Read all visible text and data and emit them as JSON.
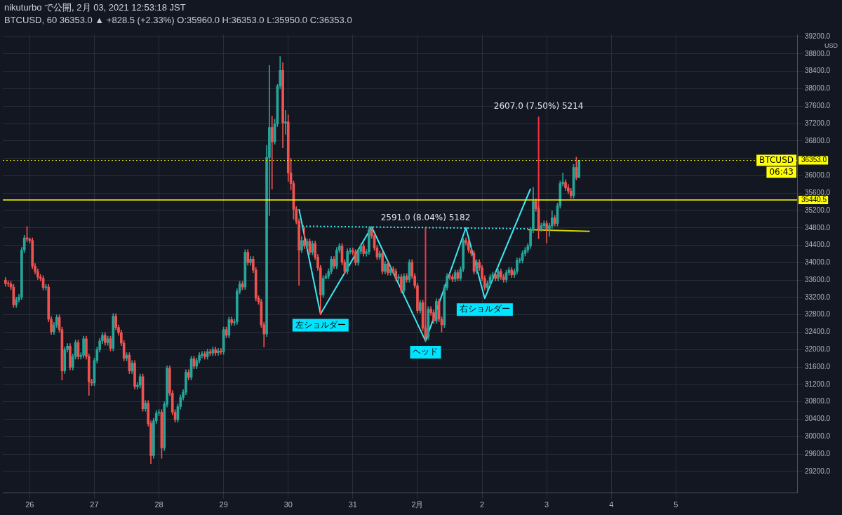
{
  "chart_data": {
    "type": "candlestick",
    "title": "nikuturbo で公開, 2月 03, 2021 12:53:18 JST",
    "subtitle": "BTCUSD, 60 36353.0 ▲ +828.5 (+2.33%) O:35960.0 H:36353.0 L:35950.0 C:36353.0",
    "ylabel": "USD",
    "x": [
      "2021-01-25T15:00",
      "2021-01-25T16:00",
      "2021-01-25T17:00",
      "2021-01-25T18:00",
      "2021-01-25T19:00",
      "2021-01-25T20:00",
      "2021-01-25T21:00",
      "2021-01-25T22:00",
      "2021-01-25T23:00",
      "2021-01-26T00:00",
      "2021-01-26T01:00",
      "2021-01-26T02:00",
      "2021-01-26T03:00",
      "2021-01-26T04:00",
      "2021-01-26T05:00",
      "2021-01-26T06:00",
      "2021-01-26T07:00",
      "2021-01-26T08:00",
      "2021-01-26T09:00",
      "2021-01-26T10:00",
      "2021-01-26T11:00",
      "2021-01-26T12:00",
      "2021-01-26T13:00",
      "2021-01-26T14:00",
      "2021-01-26T15:00",
      "2021-01-26T16:00",
      "2021-01-26T17:00",
      "2021-01-26T18:00",
      "2021-01-26T19:00",
      "2021-01-26T20:00",
      "2021-01-26T21:00",
      "2021-01-26T22:00",
      "2021-01-26T23:00",
      "2021-01-27T00:00",
      "2021-01-27T01:00",
      "2021-01-27T02:00",
      "2021-01-27T03:00",
      "2021-01-27T04:00",
      "2021-01-27T05:00",
      "2021-01-27T06:00",
      "2021-01-27T07:00",
      "2021-01-27T08:00",
      "2021-01-27T09:00",
      "2021-01-27T10:00",
      "2021-01-27T11:00",
      "2021-01-27T12:00",
      "2021-01-27T13:00",
      "2021-01-27T14:00",
      "2021-01-27T15:00",
      "2021-01-27T16:00",
      "2021-01-27T17:00",
      "2021-01-27T18:00",
      "2021-01-27T19:00",
      "2021-01-27T20:00",
      "2021-01-27T21:00",
      "2021-01-27T22:00",
      "2021-01-27T23:00",
      "2021-01-28T00:00",
      "2021-01-28T01:00",
      "2021-01-28T02:00",
      "2021-01-28T03:00",
      "2021-01-28T04:00",
      "2021-01-28T05:00",
      "2021-01-28T06:00",
      "2021-01-28T07:00",
      "2021-01-28T08:00",
      "2021-01-28T09:00",
      "2021-01-28T10:00",
      "2021-01-28T11:00",
      "2021-01-28T12:00",
      "2021-01-28T13:00",
      "2021-01-28T14:00",
      "2021-01-28T15:00",
      "2021-01-28T16:00",
      "2021-01-28T17:00",
      "2021-01-28T18:00",
      "2021-01-28T19:00",
      "2021-01-28T20:00",
      "2021-01-28T21:00",
      "2021-01-28T22:00",
      "2021-01-28T23:00",
      "2021-01-29T00:00",
      "2021-01-29T01:00",
      "2021-01-29T02:00",
      "2021-01-29T03:00",
      "2021-01-29T04:00",
      "2021-01-29T05:00",
      "2021-01-29T06:00",
      "2021-01-29T07:00",
      "2021-01-29T08:00",
      "2021-01-29T09:00",
      "2021-01-29T10:00",
      "2021-01-29T11:00",
      "2021-01-29T12:00",
      "2021-01-29T13:00",
      "2021-01-29T14:00",
      "2021-01-29T15:00",
      "2021-01-29T16:00",
      "2021-01-29T17:00",
      "2021-01-29T18:00",
      "2021-01-29T19:00",
      "2021-01-29T20:00",
      "2021-01-29T21:00",
      "2021-01-29T22:00",
      "2021-01-29T23:00",
      "2021-01-30T00:00",
      "2021-01-30T01:00",
      "2021-01-30T02:00",
      "2021-01-30T03:00",
      "2021-01-30T04:00",
      "2021-01-30T05:00",
      "2021-01-30T06:00",
      "2021-01-30T07:00",
      "2021-01-30T08:00",
      "2021-01-30T09:00",
      "2021-01-30T10:00",
      "2021-01-30T11:00",
      "2021-01-30T12:00",
      "2021-01-30T13:00",
      "2021-01-30T14:00",
      "2021-01-30T15:00",
      "2021-01-30T16:00",
      "2021-01-30T17:00",
      "2021-01-30T18:00",
      "2021-01-30T19:00",
      "2021-01-30T20:00",
      "2021-01-30T21:00",
      "2021-01-30T22:00",
      "2021-01-30T23:00",
      "2021-01-31T00:00",
      "2021-01-31T01:00",
      "2021-01-31T02:00",
      "2021-01-31T03:00",
      "2021-01-31T04:00",
      "2021-01-31T05:00",
      "2021-01-31T06:00",
      "2021-01-31T07:00",
      "2021-01-31T08:00",
      "2021-01-31T09:00",
      "2021-01-31T10:00",
      "2021-01-31T11:00",
      "2021-01-31T12:00",
      "2021-01-31T13:00",
      "2021-01-31T14:00",
      "2021-01-31T15:00",
      "2021-01-31T16:00",
      "2021-01-31T17:00",
      "2021-01-31T18:00",
      "2021-01-31T19:00",
      "2021-01-31T20:00",
      "2021-01-31T21:00",
      "2021-01-31T22:00",
      "2021-01-31T23:00",
      "2021-02-01T00:00",
      "2021-02-01T01:00",
      "2021-02-01T02:00",
      "2021-02-01T03:00",
      "2021-02-01T04:00",
      "2021-02-01T05:00",
      "2021-02-01T06:00",
      "2021-02-01T07:00",
      "2021-02-01T08:00",
      "2021-02-01T09:00",
      "2021-02-01T10:00",
      "2021-02-01T11:00",
      "2021-02-01T12:00",
      "2021-02-01T13:00",
      "2021-02-01T14:00",
      "2021-02-01T15:00",
      "2021-02-01T16:00",
      "2021-02-01T17:00",
      "2021-02-01T18:00",
      "2021-02-01T19:00",
      "2021-02-01T20:00",
      "2021-02-01T21:00",
      "2021-02-01T22:00",
      "2021-02-01T23:00",
      "2021-02-02T00:00",
      "2021-02-02T01:00",
      "2021-02-02T02:00",
      "2021-02-02T03:00",
      "2021-02-02T04:00",
      "2021-02-02T05:00",
      "2021-02-02T06:00",
      "2021-02-02T07:00",
      "2021-02-02T08:00",
      "2021-02-02T09:00",
      "2021-02-02T10:00",
      "2021-02-02T11:00",
      "2021-02-02T12:00",
      "2021-02-02T13:00",
      "2021-02-02T14:00",
      "2021-02-02T15:00",
      "2021-02-02T16:00",
      "2021-02-02T17:00",
      "2021-02-02T18:00",
      "2021-02-02T19:00",
      "2021-02-02T20:00",
      "2021-02-02T21:00",
      "2021-02-02T22:00",
      "2021-02-02T23:00",
      "2021-02-03T00:00",
      "2021-02-03T01:00",
      "2021-02-03T02:00",
      "2021-02-03T03:00",
      "2021-02-03T04:00",
      "2021-02-03T05:00",
      "2021-02-03T06:00",
      "2021-02-03T07:00",
      "2021-02-03T08:00",
      "2021-02-03T09:00",
      "2021-02-03T10:00",
      "2021-02-03T11:00",
      "2021-02-03T12:00"
    ],
    "ohlc": [
      [
        33600,
        33660,
        33460,
        33520
      ],
      [
        33520,
        33580,
        33450,
        33510
      ],
      [
        33510,
        33570,
        33380,
        33440
      ],
      [
        33440,
        33500,
        32970,
        33030
      ],
      [
        33030,
        33210,
        32970,
        33150
      ],
      [
        33150,
        33270,
        33090,
        33210
      ],
      [
        33210,
        34350,
        33150,
        34290
      ],
      [
        34290,
        34630,
        34230,
        34570
      ],
      [
        34570,
        34830,
        34480,
        34540
      ],
      [
        34540,
        34570,
        34450,
        34510
      ],
      [
        34510,
        34570,
        33860,
        33920
      ],
      [
        33920,
        33980,
        33740,
        33800
      ],
      [
        33800,
        33860,
        33610,
        33670
      ],
      [
        33670,
        33730,
        33580,
        33640
      ],
      [
        33640,
        33700,
        33370,
        33430
      ],
      [
        33430,
        33500,
        33370,
        33440
      ],
      [
        33440,
        33500,
        32640,
        32700
      ],
      [
        32700,
        32760,
        32350,
        32410
      ],
      [
        32410,
        32630,
        32350,
        32570
      ],
      [
        32570,
        32800,
        32510,
        32740
      ],
      [
        32740,
        32800,
        32400,
        32460
      ],
      [
        32460,
        32520,
        31300,
        31510
      ],
      [
        31510,
        32060,
        31450,
        32000
      ],
      [
        32000,
        32140,
        31940,
        32080
      ],
      [
        32080,
        32140,
        31530,
        31590
      ],
      [
        31590,
        31900,
        31530,
        31840
      ],
      [
        31840,
        32220,
        31780,
        32160
      ],
      [
        32160,
        32220,
        31780,
        31840
      ],
      [
        31840,
        31930,
        31780,
        31870
      ],
      [
        31870,
        32310,
        31810,
        32250
      ],
      [
        32250,
        32310,
        31780,
        31840
      ],
      [
        31840,
        31900,
        30950,
        31260
      ],
      [
        31260,
        31320,
        31170,
        31230
      ],
      [
        31230,
        31810,
        31170,
        31750
      ],
      [
        31750,
        32060,
        31690,
        32000
      ],
      [
        32000,
        32260,
        31940,
        32200
      ],
      [
        32200,
        32390,
        32140,
        32330
      ],
      [
        32330,
        32390,
        32100,
        32160
      ],
      [
        32160,
        32310,
        32100,
        32250
      ],
      [
        32250,
        32310,
        31970,
        32030
      ],
      [
        32030,
        32830,
        31970,
        32770
      ],
      [
        32770,
        32830,
        32450,
        32510
      ],
      [
        32510,
        32570,
        32330,
        32390
      ],
      [
        32390,
        32450,
        32090,
        32150
      ],
      [
        32150,
        32210,
        31740,
        31800
      ],
      [
        31800,
        31930,
        31740,
        31870
      ],
      [
        31870,
        31930,
        31450,
        31510
      ],
      [
        31510,
        31750,
        31450,
        31690
      ],
      [
        31690,
        31750,
        31090,
        31150
      ],
      [
        31150,
        31240,
        31090,
        31180
      ],
      [
        31180,
        31440,
        31120,
        31380
      ],
      [
        31380,
        31440,
        30580,
        30640
      ],
      [
        30640,
        30830,
        30580,
        30770
      ],
      [
        30770,
        30830,
        30240,
        30300
      ],
      [
        30300,
        30360,
        29380,
        29560
      ],
      [
        29560,
        30420,
        29500,
        30360
      ],
      [
        30360,
        30600,
        30300,
        30540
      ],
      [
        30540,
        30620,
        30480,
        30560
      ],
      [
        30560,
        30620,
        29500,
        29740
      ],
      [
        29740,
        30800,
        29680,
        30740
      ],
      [
        30740,
        31630,
        30680,
        31570
      ],
      [
        31570,
        31630,
        30940,
        31000
      ],
      [
        31000,
        31060,
        30500,
        30560
      ],
      [
        30560,
        30620,
        30330,
        30390
      ],
      [
        30390,
        30750,
        30330,
        30690
      ],
      [
        30690,
        30960,
        30630,
        30900
      ],
      [
        30900,
        31080,
        30840,
        31020
      ],
      [
        31020,
        31540,
        30960,
        31480
      ],
      [
        31480,
        31540,
        31300,
        31360
      ],
      [
        31360,
        31850,
        31300,
        31790
      ],
      [
        31790,
        31850,
        31560,
        31620
      ],
      [
        31620,
        31810,
        31560,
        31750
      ],
      [
        31750,
        31930,
        31690,
        31870
      ],
      [
        31870,
        31960,
        31810,
        31900
      ],
      [
        31900,
        31960,
        31780,
        31840
      ],
      [
        31840,
        32010,
        31780,
        31950
      ],
      [
        31950,
        32010,
        31860,
        31920
      ],
      [
        31920,
        32060,
        31860,
        32000
      ],
      [
        32000,
        32060,
        31870,
        31930
      ],
      [
        31930,
        32030,
        31870,
        31970
      ],
      [
        31970,
        32030,
        31890,
        31950
      ],
      [
        31950,
        32520,
        31890,
        32460
      ],
      [
        32460,
        32520,
        32270,
        32330
      ],
      [
        32330,
        32750,
        32270,
        32690
      ],
      [
        32690,
        32750,
        32560,
        32620
      ],
      [
        32620,
        32700,
        32560,
        32640
      ],
      [
        32640,
        33400,
        32580,
        33340
      ],
      [
        33340,
        33570,
        33280,
        33510
      ],
      [
        33510,
        33570,
        33380,
        33440
      ],
      [
        33440,
        34300,
        33380,
        34240
      ],
      [
        34240,
        34300,
        33940,
        34000
      ],
      [
        34000,
        34140,
        33940,
        34080
      ],
      [
        34080,
        34140,
        33770,
        33830
      ],
      [
        33830,
        33890,
        33120,
        33180
      ],
      [
        33180,
        33240,
        33040,
        33100
      ],
      [
        33100,
        33160,
        32510,
        32570
      ],
      [
        32570,
        32630,
        32060,
        32360
      ],
      [
        32360,
        36700,
        32300,
        36420
      ],
      [
        36420,
        38540,
        35080,
        37110
      ],
      [
        37110,
        37370,
        35690,
        36780
      ],
      [
        36780,
        37300,
        36720,
        37190
      ],
      [
        37190,
        38100,
        37130,
        38060
      ],
      [
        38060,
        38740,
        38000,
        38420
      ],
      [
        38420,
        38600,
        36640,
        37210
      ],
      [
        37210,
        37500,
        36950,
        37240
      ],
      [
        37240,
        37400,
        35870,
        36060
      ],
      [
        36060,
        36400,
        35670,
        35820
      ],
      [
        35820,
        35880,
        35000,
        35230
      ],
      [
        35230,
        35290,
        34890,
        34950
      ],
      [
        34950,
        35010,
        33480,
        34290
      ],
      [
        34290,
        34600,
        34230,
        34510
      ],
      [
        34510,
        34820,
        34320,
        34380
      ],
      [
        34380,
        34550,
        34320,
        34490
      ],
      [
        34490,
        34550,
        34180,
        34240
      ],
      [
        34240,
        34500,
        34180,
        34440
      ],
      [
        34440,
        34500,
        34070,
        34130
      ],
      [
        34130,
        34190,
        33820,
        33880
      ],
      [
        33880,
        33940,
        32800,
        33260
      ],
      [
        33260,
        33700,
        33200,
        33640
      ],
      [
        33640,
        33750,
        33630,
        33690
      ],
      [
        33690,
        33860,
        33630,
        33800
      ],
      [
        33800,
        34140,
        33740,
        34080
      ],
      [
        34080,
        34140,
        33860,
        33920
      ],
      [
        33920,
        34350,
        33860,
        34290
      ],
      [
        34290,
        34440,
        34230,
        34380
      ],
      [
        34380,
        34440,
        33950,
        34010
      ],
      [
        34010,
        34070,
        33740,
        33800
      ],
      [
        33800,
        34320,
        33740,
        34260
      ],
      [
        34260,
        34340,
        34200,
        34280
      ],
      [
        34280,
        34340,
        34180,
        34240
      ],
      [
        34240,
        34300,
        33940,
        34000
      ],
      [
        34000,
        34320,
        33940,
        34260
      ],
      [
        34260,
        34440,
        34200,
        34380
      ],
      [
        34380,
        34440,
        34150,
        34210
      ],
      [
        34210,
        34310,
        34150,
        34250
      ],
      [
        34250,
        34820,
        34190,
        34750
      ],
      [
        34750,
        34810,
        34560,
        34620
      ],
      [
        34620,
        34680,
        34280,
        34340
      ],
      [
        34340,
        34400,
        34070,
        34130
      ],
      [
        34130,
        34270,
        34070,
        34210
      ],
      [
        34210,
        34270,
        33740,
        33800
      ],
      [
        33800,
        34030,
        33740,
        33970
      ],
      [
        33970,
        34030,
        33710,
        33770
      ],
      [
        33770,
        33910,
        33710,
        33850
      ],
      [
        33850,
        33910,
        33740,
        33800
      ],
      [
        33800,
        33860,
        33580,
        33640
      ],
      [
        33640,
        33730,
        33580,
        33670
      ],
      [
        33670,
        33730,
        33300,
        33360
      ],
      [
        33360,
        33750,
        33300,
        33690
      ],
      [
        33690,
        33750,
        33550,
        33610
      ],
      [
        33610,
        34070,
        33550,
        34010
      ],
      [
        34010,
        34070,
        33630,
        33690
      ],
      [
        33690,
        33750,
        33410,
        33470
      ],
      [
        33470,
        33530,
        32840,
        32900
      ],
      [
        32900,
        33140,
        32840,
        33080
      ],
      [
        33080,
        33140,
        32430,
        32490
      ],
      [
        32490,
        32550,
        32180,
        32290
      ],
      [
        32290,
        32990,
        32230,
        32930
      ],
      [
        32930,
        32990,
        32790,
        32850
      ],
      [
        32850,
        32910,
        32600,
        32660
      ],
      [
        32660,
        33170,
        32600,
        33110
      ],
      [
        33110,
        33170,
        32640,
        32700
      ],
      [
        32700,
        32760,
        32400,
        32570
      ],
      [
        32570,
        33490,
        32510,
        33430
      ],
      [
        33430,
        33750,
        33370,
        33690
      ],
      [
        33690,
        33750,
        33610,
        33670
      ],
      [
        33670,
        33730,
        33560,
        33620
      ],
      [
        33620,
        33830,
        33560,
        33770
      ],
      [
        33770,
        33830,
        33580,
        33640
      ],
      [
        33640,
        33910,
        33580,
        33850
      ],
      [
        33850,
        34570,
        33790,
        34510
      ],
      [
        34510,
        34570,
        34400,
        34460
      ],
      [
        34460,
        34520,
        34230,
        34290
      ],
      [
        34290,
        34350,
        34150,
        34210
      ],
      [
        34210,
        34270,
        33740,
        33800
      ],
      [
        33800,
        34070,
        33740,
        34010
      ],
      [
        34010,
        34070,
        33820,
        33880
      ],
      [
        33880,
        33940,
        33580,
        33640
      ],
      [
        33640,
        33700,
        33370,
        33430
      ],
      [
        33430,
        33580,
        33370,
        33520
      ],
      [
        33520,
        33730,
        33460,
        33670
      ],
      [
        33670,
        33780,
        33610,
        33720
      ],
      [
        33720,
        33780,
        33580,
        33640
      ],
      [
        33640,
        33860,
        33580,
        33800
      ],
      [
        33800,
        33860,
        33610,
        33670
      ],
      [
        33670,
        33730,
        33550,
        33610
      ],
      [
        33610,
        33830,
        33550,
        33770
      ],
      [
        33770,
        33890,
        33710,
        33830
      ],
      [
        33830,
        33890,
        33660,
        33720
      ],
      [
        33720,
        33860,
        33660,
        33800
      ],
      [
        33800,
        34110,
        33740,
        34050
      ],
      [
        34050,
        34110,
        33990,
        34050
      ],
      [
        34050,
        34270,
        33990,
        34210
      ],
      [
        34210,
        34350,
        34150,
        34290
      ],
      [
        34290,
        34440,
        34230,
        34380
      ],
      [
        34380,
        34810,
        34320,
        34750
      ],
      [
        34750,
        35730,
        34690,
        35410
      ],
      [
        35410,
        35470,
        35180,
        35240
      ],
      [
        35240,
        35300,
        34550,
        34780
      ],
      [
        34780,
        34910,
        34720,
        34850
      ],
      [
        34850,
        34960,
        34790,
        34900
      ],
      [
        34900,
        34960,
        34450,
        34780
      ],
      [
        34780,
        34910,
        34600,
        34850
      ],
      [
        34850,
        35190,
        34790,
        35030
      ],
      [
        35030,
        35090,
        34840,
        34900
      ],
      [
        34900,
        35370,
        34840,
        35310
      ],
      [
        35310,
        35880,
        35250,
        35820
      ],
      [
        35820,
        36060,
        35760,
        35850
      ],
      [
        35850,
        35910,
        35660,
        35720
      ],
      [
        35720,
        35800,
        35590,
        35650
      ],
      [
        35650,
        35710,
        35480,
        35540
      ],
      [
        35540,
        36260,
        35480,
        36190
      ],
      [
        36190,
        36430,
        35900,
        35960
      ],
      [
        35960,
        36353,
        35950,
        36353
      ]
    ],
    "series": [
      {
        "type": "line",
        "color": "#3ee8f0",
        "x": [
          "2021-01-30T04:00",
          "2021-01-30T12:00",
          "2021-01-31T07:00",
          "2021-02-01T03:00",
          "2021-02-01T18:00",
          "2021-02-02T01:00",
          "2021-02-02T18:00"
        ],
        "values": [
          35230,
          32820,
          34820,
          32200,
          34800,
          33180,
          35700
        ]
      },
      {
        "type": "line",
        "color": "#3ee8f0",
        "line_style": "dotted",
        "x": [
          "2021-01-30T04:00",
          "2021-02-02T17:00"
        ],
        "values": [
          34840,
          34780
        ]
      },
      {
        "type": "line",
        "color": "#d4d400",
        "x": [
          "2021-02-02T17:00",
          "2021-02-03T16:00"
        ],
        "values": [
          34760,
          34720
        ]
      },
      {
        "type": "line",
        "color": "#f23645",
        "x": [
          "2021-02-01T03:00",
          "2021-02-01T03:00"
        ],
        "values": [
          32200,
          34800
        ]
      },
      {
        "type": "line",
        "color": "#f23645",
        "x": [
          "2021-02-02T21:00",
          "2021-02-02T21:00"
        ],
        "values": [
          34750,
          37360
        ]
      }
    ],
    "xlim": [
      "2021-01-25T14:00",
      "2021-02-06T21:00"
    ],
    "xticks": [
      {
        "value": "2021-01-26",
        "label": "26"
      },
      {
        "value": "2021-01-27",
        "label": "27"
      },
      {
        "value": "2021-01-28",
        "label": "28"
      },
      {
        "value": "2021-01-29",
        "label": "29"
      },
      {
        "value": "2021-01-30",
        "label": "30"
      },
      {
        "value": "2021-01-31",
        "label": "31"
      },
      {
        "value": "2021-02-01",
        "label": "2月"
      },
      {
        "value": "2021-02-02",
        "label": "2"
      },
      {
        "value": "2021-02-03",
        "label": "3"
      },
      {
        "value": "2021-02-04",
        "label": "4"
      },
      {
        "value": "2021-02-05",
        "label": "5"
      }
    ],
    "ylim": [
      28700,
      39250
    ],
    "yticks": [
      {
        "value": 29200,
        "label": "29200.0"
      },
      {
        "value": 29600,
        "label": "29600.0"
      },
      {
        "value": 30000,
        "label": "30000.0"
      },
      {
        "value": 30400,
        "label": "30400.0"
      },
      {
        "value": 30800,
        "label": "30800.0"
      },
      {
        "value": 31200,
        "label": "31200.0"
      },
      {
        "value": 31600,
        "label": "31600.0"
      },
      {
        "value": 32000,
        "label": "32000.0"
      },
      {
        "value": 32400,
        "label": "32400.0"
      },
      {
        "value": 32800,
        "label": "32800.0"
      },
      {
        "value": 33200,
        "label": "33200.0"
      },
      {
        "value": 33600,
        "label": "33600.0"
      },
      {
        "value": 34000,
        "label": "34000.0"
      },
      {
        "value": 34400,
        "label": "34400.0"
      },
      {
        "value": 34800,
        "label": "34800.0"
      },
      {
        "value": 35200,
        "label": "35200.0"
      },
      {
        "value": 35600,
        "label": "35600.0"
      },
      {
        "value": 36000,
        "label": "36000.0"
      },
      {
        "value": 36400,
        "label": null
      },
      {
        "value": 36800,
        "label": "36800.0"
      },
      {
        "value": 37200,
        "label": "37200.0"
      },
      {
        "value": 37600,
        "label": "37600.0"
      },
      {
        "value": 38000,
        "label": "38000.0"
      },
      {
        "value": 38400,
        "label": "38400.0"
      },
      {
        "value": 38800,
        "label": "38800.0"
      },
      {
        "value": 39200,
        "label": "39200.0"
      }
    ],
    "ref_lines": [
      {
        "axis": "y",
        "value": 35440.5,
        "label": "35440.5",
        "color": "#ffff00",
        "line_style": "solid"
      },
      {
        "axis": "y",
        "value": 36353,
        "label": "36353.0",
        "color": "#ffff00",
        "line_style": "dotted"
      }
    ],
    "annotations": [
      {
        "text": "2591.0 (8.04%) 5182",
        "x": "2021-02-01T03:00",
        "y": 34800
      },
      {
        "text": "2607.0 (7.50%) 5214",
        "x": "2021-02-02T21:00",
        "y": 37360
      },
      {
        "text": "左ショルダー",
        "x": "2021-01-30T12:00",
        "y": 32820
      },
      {
        "text": "ヘッド",
        "x": "2021-02-01T03:00",
        "y": 32200
      },
      {
        "text": "右ショルダー",
        "x": "2021-02-02T01:00",
        "y": 33180
      },
      "BTCUSD",
      "06:43"
    ],
    "grid": true,
    "legend": false,
    "marker": "none"
  }
}
